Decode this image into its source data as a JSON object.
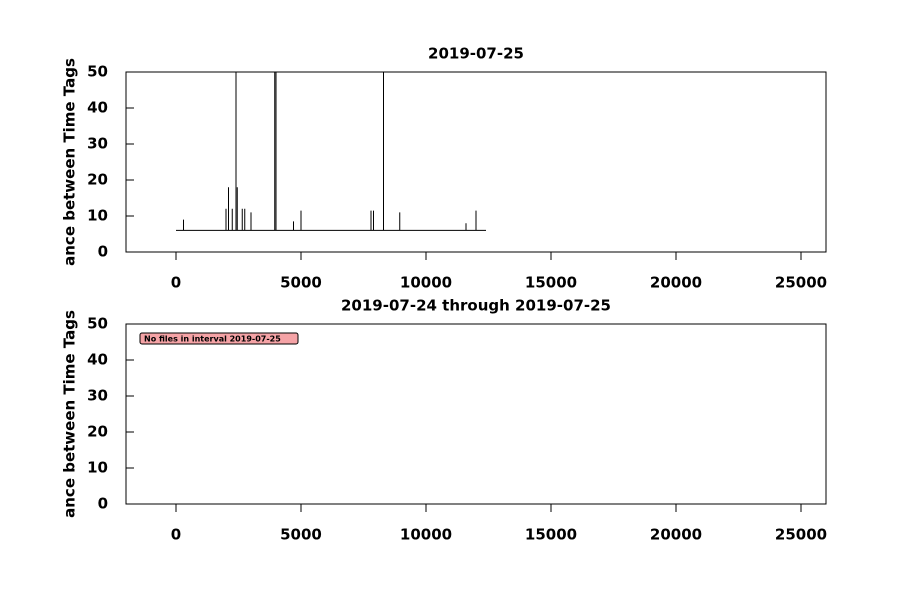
{
  "chart_data": [
    {
      "type": "line",
      "title": "2019-07-25",
      "y_label": "ance between Time Tags",
      "color": "#000000",
      "x": [
        0,
        300,
        300,
        300,
        2000,
        2000,
        2000,
        2100,
        2100,
        2100,
        2250,
        2250,
        2250,
        2400,
        2400,
        2400,
        2450,
        2450,
        2450,
        2650,
        2650,
        2650,
        2750,
        2750,
        2750,
        3000,
        3000,
        3000,
        3950,
        3950,
        3950,
        4000,
        4000,
        4000,
        4700,
        4700,
        4700,
        5000,
        5000,
        5000,
        7800,
        7800,
        7800,
        7900,
        7900,
        7900,
        8300,
        8300,
        8300,
        8950,
        8950,
        8950,
        11600,
        11600,
        11600,
        12000,
        12000,
        12000,
        12400
      ],
      "values": [
        6,
        6,
        9,
        6,
        6,
        12,
        6,
        6,
        18,
        6,
        6,
        12,
        6,
        6,
        50,
        6,
        6,
        18,
        6,
        6,
        12,
        6,
        6,
        12,
        6,
        6,
        11,
        6,
        6,
        50,
        6,
        6,
        50,
        6,
        6,
        8.5,
        6,
        6,
        11.5,
        6,
        6,
        11.5,
        6,
        6,
        11.5,
        6,
        6,
        50,
        6,
        6,
        11,
        6,
        6,
        8,
        6,
        6,
        11.5,
        6,
        6
      ],
      "xlim": [
        -2000,
        26000
      ],
      "xticks": [
        0,
        5000,
        10000,
        15000,
        20000,
        25000
      ],
      "ylim": [
        0,
        50
      ],
      "yticks": [
        0,
        10,
        20,
        30,
        40,
        50
      ]
    },
    {
      "type": "line",
      "title": "2019-07-24 through 2019-07-25",
      "y_label": "ance between Time Tags",
      "color": "#000000",
      "annotation": "No files in interval 2019-07-25",
      "x": [],
      "values": [],
      "xlim": [
        -2000,
        26000
      ],
      "xticks": [
        0,
        5000,
        10000,
        15000,
        20000,
        25000
      ],
      "ylim": [
        0,
        50
      ],
      "yticks": [
        0,
        10,
        20,
        30,
        40,
        50
      ]
    }
  ]
}
